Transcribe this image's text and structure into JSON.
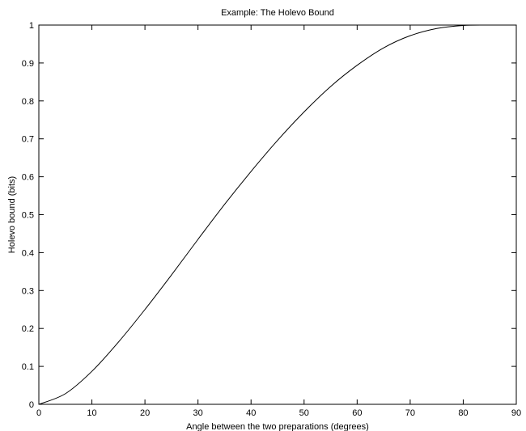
{
  "chart_data": {
    "type": "line",
    "title": "Example: The Holevo Bound",
    "xlabel": "Angle between the two preparations (degrees)",
    "ylabel": "Holevo bound (bits)",
    "xlim": [
      0,
      90
    ],
    "ylim": [
      0,
      1
    ],
    "xticks": [
      "0",
      "10",
      "20",
      "30",
      "40",
      "50",
      "60",
      "70",
      "80",
      "90"
    ],
    "yticks": [
      "0",
      "0.1",
      "0.2",
      "0.3",
      "0.4",
      "0.5",
      "0.6",
      "0.7",
      "0.8",
      "0.9",
      "1"
    ],
    "grid": false,
    "series": [
      {
        "color": "#000000",
        "x": [
          0,
          5,
          10,
          15,
          20,
          25,
          30,
          35,
          40,
          45,
          50,
          55,
          60,
          65,
          70,
          75,
          80,
          85,
          90
        ],
        "y": [
          0,
          0.028,
          0.087,
          0.164,
          0.25,
          0.341,
          0.435,
          0.527,
          0.614,
          0.696,
          0.771,
          0.838,
          0.894,
          0.94,
          0.972,
          0.991,
          0.999,
          1.0,
          1.0
        ]
      }
    ]
  }
}
